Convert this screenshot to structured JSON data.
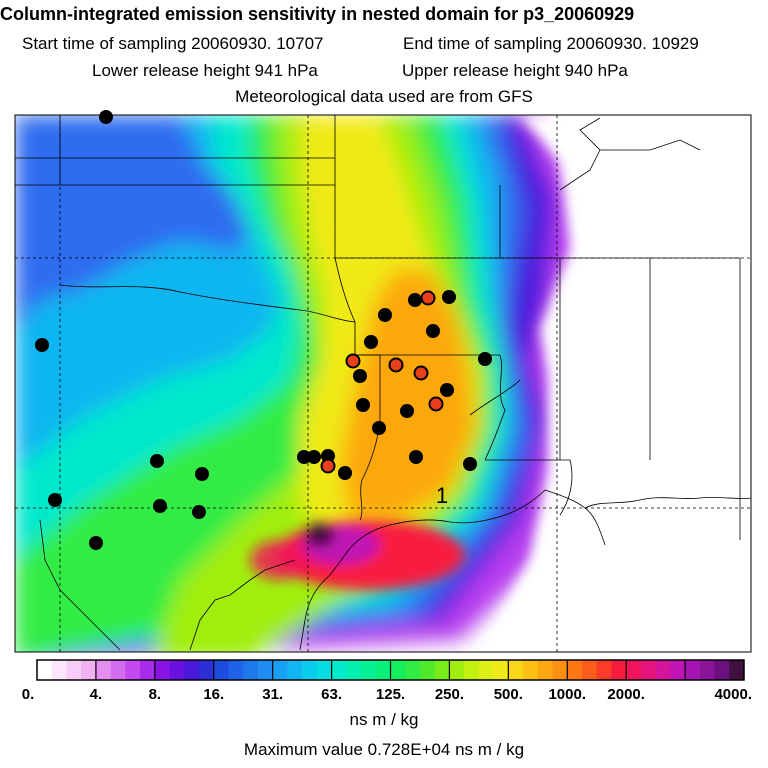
{
  "header": {
    "title": "Column-integrated emission sensitivity in nested domain for p3_20060929",
    "start_label": "Start time of sampling 20060930. 10707",
    "end_label": "End time of sampling 20060930. 10929",
    "lower_label": "Lower release height  941 hPa",
    "upper_label": "Upper release height  940 hPa",
    "met_label": "Meteorological data used are from GFS"
  },
  "map": {
    "release_marker": "1",
    "colors": {
      "black": "#000000",
      "red": "#e8401c",
      "bg_blue": "#2e6cf0"
    }
  },
  "colorbar": {
    "tick_labels": [
      "0.",
      "4.",
      "8.",
      "16.",
      "31.",
      "63.",
      "125.",
      "250.",
      "500.",
      "1000.",
      "2000.",
      "4000."
    ],
    "colors": [
      "#ffffff",
      "#fbe6fb",
      "#f7ccf7",
      "#f0b0f2",
      "#e48ef0",
      "#d46cf0",
      "#c24aee",
      "#a82ceb",
      "#8a14e6",
      "#6a10e0",
      "#4a18da",
      "#2c2ed6",
      "#1e4cde",
      "#1e62e6",
      "#1e78ec",
      "#1e8cf0",
      "#18a0f2",
      "#10b6f0",
      "#08cceb",
      "#04dce2",
      "#04e8cc",
      "#04eeb0",
      "#04f094",
      "#08f078",
      "#14ee5c",
      "#30ec44",
      "#50ea2c",
      "#78ec18",
      "#a0ee10",
      "#c4f010",
      "#dcf018",
      "#f0ea18",
      "#fad618",
      "#fcc014",
      "#fca810",
      "#fc9010",
      "#fc7814",
      "#fc5c1c",
      "#fc3c28",
      "#f81c40",
      "#f0145c",
      "#e4147c",
      "#d4149c",
      "#c014b4",
      "#a414b4",
      "#881498",
      "#6c1080",
      "#401040"
    ],
    "unit": "ns m / kg",
    "max_label": "Maximum value  0.728E+04 ns m / kg"
  }
}
